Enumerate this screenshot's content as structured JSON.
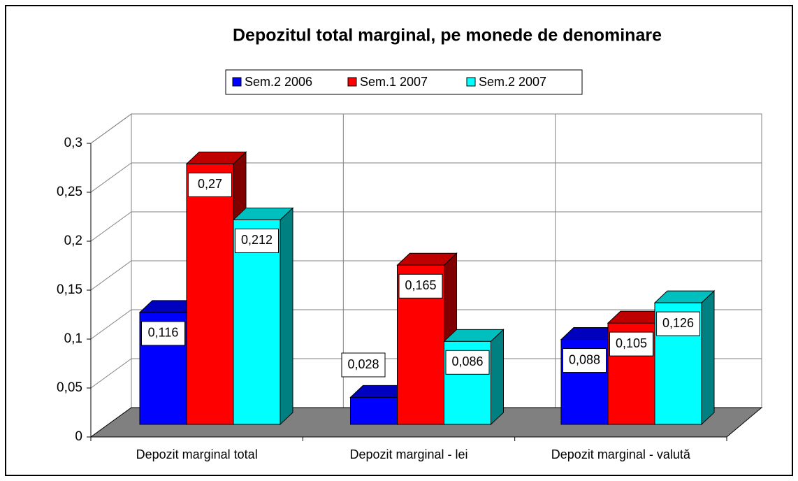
{
  "chart_data": {
    "type": "bar3d",
    "title": "Depozitul total marginal, pe monede de denominare",
    "categories": [
      "Depozit marginal total",
      "Depozit marginal - lei",
      "Depozit marginal - valută"
    ],
    "series": [
      {
        "name": "Sem.2 2006",
        "color": "#0000ff",
        "values": [
          0.116,
          0.028,
          0.088
        ],
        "value_labels": [
          "0,116",
          "0,028",
          "0,088"
        ]
      },
      {
        "name": "Sem.1 2007",
        "color": "#ff0000",
        "values": [
          0.27,
          0.165,
          0.105
        ],
        "value_labels": [
          "0,27",
          "0,165",
          "0,105"
        ]
      },
      {
        "name": "Sem.2 2007",
        "color": "#00ffff",
        "values": [
          0.212,
          0.086,
          0.126
        ],
        "value_labels": [
          "0,212",
          "0,086",
          "0,126"
        ]
      }
    ],
    "ylim": [
      0,
      0.3
    ],
    "yticks": [
      0,
      {
        "value": 0.05,
        "label": "0,05"
      },
      {
        "value": 0.1,
        "label": "0,1"
      },
      {
        "value": 0.15,
        "label": "0,15"
      },
      {
        "value": 0.2,
        "label": "0,2"
      },
      {
        "value": 0.25,
        "label": "0,25"
      },
      {
        "value": 0.3,
        "label": "0,3"
      }
    ],
    "grid": true,
    "legend": "top"
  }
}
